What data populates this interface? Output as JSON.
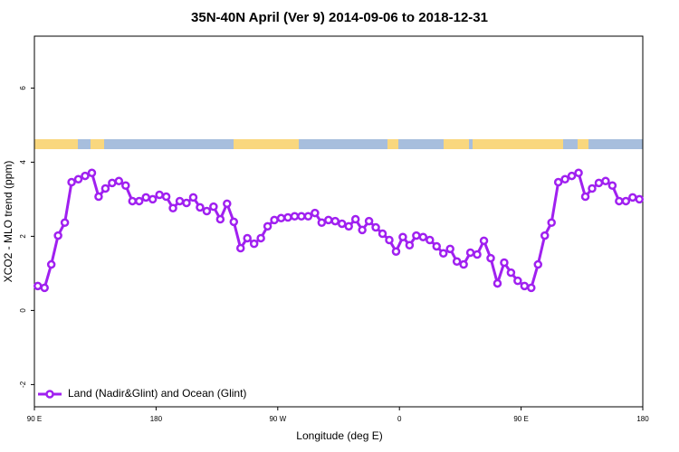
{
  "chart_data": {
    "type": "line",
    "title": "35N-40N April (Ver 9)   2014-09-06 to 2018-12-31",
    "x_label": "Longitude (deg E)",
    "y_label": "XCO2 - MLO trend (ppm)",
    "legend_position": "bottom-left",
    "xlim": [
      90,
      540
    ],
    "ylim": [
      -2.6,
      7.4
    ],
    "xticks": [
      {
        "value": 90,
        "label": "90 E"
      },
      180,
      {
        "value": 270,
        "label": "90 W"
      },
      {
        "value": 360,
        "label": "0"
      },
      {
        "value": 450,
        "label": "90 E"
      },
      {
        "value": 540,
        "label": "180"
      }
    ],
    "yticks": [
      -2,
      0,
      2,
      4,
      6
    ],
    "x": [
      92.5,
      97.5,
      102.5,
      107.5,
      112.5,
      117.5,
      122.5,
      127.5,
      132.5,
      137.5,
      142.5,
      147.5,
      152.5,
      157.5,
      162.5,
      167.5,
      172.5,
      177.5,
      182.5,
      187.5,
      192.5,
      197.5,
      202.5,
      207.5,
      212.5,
      217.5,
      222.5,
      227.5,
      232.5,
      237.5,
      242.5,
      247.5,
      252.5,
      257.5,
      262.5,
      267.5,
      272.5,
      277.5,
      282.5,
      287.5,
      292.5,
      297.5,
      302.5,
      307.5,
      312.5,
      317.5,
      322.5,
      327.5,
      332.5,
      337.5,
      342.5,
      347.5,
      352.5,
      357.5,
      362.5,
      367.5,
      372.5,
      377.5,
      382.5,
      387.5,
      392.5,
      397.5,
      402.5,
      407.5,
      412.5,
      417.5,
      422.5,
      427.5,
      432.5,
      437.5,
      442.5,
      447.5,
      452.5,
      457.5,
      462.5,
      467.5,
      472.5,
      477.5,
      482.5,
      487.5,
      492.5,
      497.5,
      502.5,
      507.5,
      512.5,
      517.5,
      522.5,
      527.5,
      532.5,
      537.5
    ],
    "series": [
      {
        "name": "Land (Nadir&Glint) and Ocean (Glint)",
        "color": "#a020f0",
        "values": [
          0.66,
          0.61,
          1.24,
          2.02,
          2.37,
          3.46,
          3.54,
          3.63,
          3.71,
          3.07,
          3.29,
          3.44,
          3.49,
          3.37,
          2.95,
          2.95,
          3.05,
          3.0,
          3.12,
          3.07,
          2.76,
          2.95,
          2.9,
          3.05,
          2.78,
          2.68,
          2.8,
          2.46,
          2.88,
          2.39,
          1.68,
          1.95,
          1.8,
          1.95,
          2.27,
          2.44,
          2.49,
          2.51,
          2.54,
          2.54,
          2.54,
          2.63,
          2.37,
          2.44,
          2.41,
          2.34,
          2.27,
          2.46,
          2.17,
          2.41,
          2.24,
          2.07,
          1.9,
          1.59,
          1.98,
          1.76,
          2.02,
          1.98,
          1.9,
          1.73,
          1.54,
          1.66,
          1.32,
          1.24,
          1.56,
          1.51,
          1.88,
          1.41,
          0.73,
          1.29,
          1.02,
          0.8,
          0.66,
          0.61,
          1.24,
          2.02,
          2.37,
          3.46,
          3.54,
          3.63,
          3.71,
          3.07,
          3.29,
          3.44,
          3.49,
          3.37,
          2.95,
          2.95,
          3.05,
          3.0
        ]
      }
    ]
  }
}
